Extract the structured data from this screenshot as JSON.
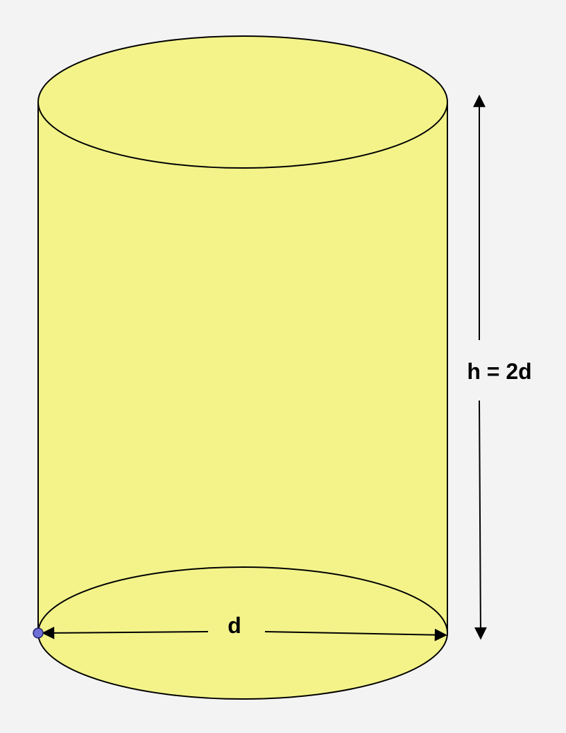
{
  "colors": {
    "background": "#f3f3f3",
    "cylinder_fill": "#f3f38a",
    "outline": "#000000",
    "point": "#6f6fd8"
  },
  "labels": {
    "diameter": "d",
    "height": "h = 2d"
  }
}
